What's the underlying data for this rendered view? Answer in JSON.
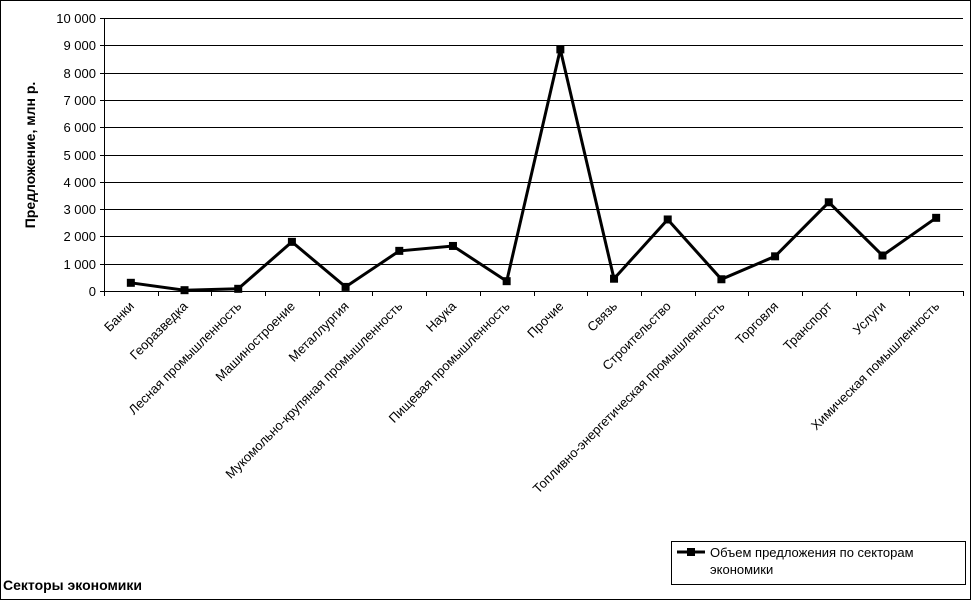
{
  "chart_data": {
    "type": "line",
    "categories": [
      "Банки",
      "Георазведка",
      "Лесная промышленность",
      "Машиностроение",
      "Металлургия",
      "Мукомольно-крупяная промышленность",
      "Наука",
      "Пищевая промышленность",
      "Прочие",
      "Связь",
      "Строительство",
      "Топливно-энергетическая промышленность",
      "Торговля",
      "Транспорт",
      "Услуги",
      "Химическая помышленность"
    ],
    "series": [
      {
        "name": "Объем предложения по секторам экономики",
        "values": [
          300,
          30,
          80,
          1800,
          150,
          1470,
          1650,
          360,
          8850,
          450,
          2620,
          430,
          1270,
          3250,
          1300,
          2680
        ],
        "color": "#000000",
        "marker": "square"
      }
    ],
    "ylabel": "Предложение, млн р.",
    "xlabel": "Секторы экономики",
    "ylim": [
      0,
      10000
    ],
    "yticks": [
      0,
      1000,
      2000,
      3000,
      4000,
      5000,
      6000,
      7000,
      8000,
      9000,
      10000
    ],
    "ytick_labels": [
      "0",
      "1 000",
      "2 000",
      "3 000",
      "4 000",
      "5 000",
      "6 000",
      "7 000",
      "8 000",
      "9 000",
      "10 000"
    ],
    "grid": true,
    "legend_position": "bottom-right"
  }
}
